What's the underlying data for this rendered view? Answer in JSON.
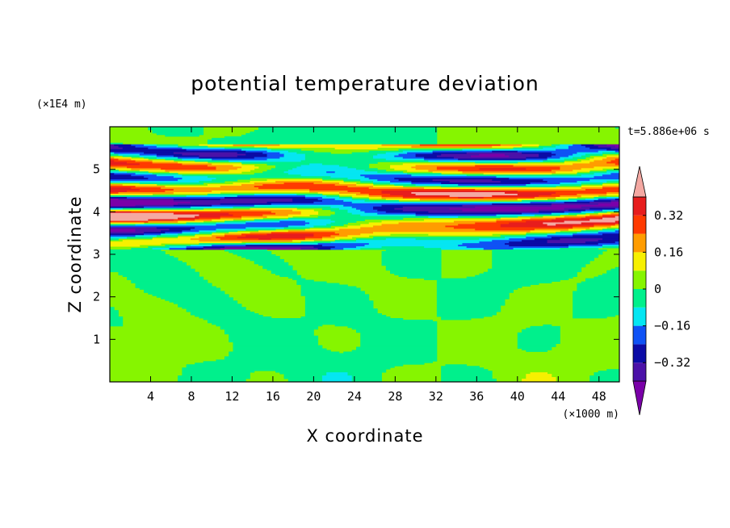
{
  "chart_data": {
    "type": "heatmap",
    "title": "potential temperature deviation",
    "xlabel": "X coordinate",
    "ylabel": "Z coordinate",
    "x_unit": "(×1000 m)",
    "y_unit": "(×1E4 m)",
    "time_label": "t=5.886e+06 s",
    "xlim": [
      0,
      50
    ],
    "ylim": [
      0,
      6
    ],
    "x_ticks": [
      "4",
      "8",
      "12",
      "16",
      "20",
      "24",
      "28",
      "32",
      "36",
      "40",
      "44",
      "48"
    ],
    "y_ticks": [
      "1",
      "2",
      "3",
      "4",
      "5"
    ],
    "colorbar": {
      "tick_labels": [
        "0.32",
        "0.16",
        "0",
        "−0.16",
        "−0.32"
      ],
      "tick_values": [
        0.32,
        0.16,
        0,
        -0.16,
        -0.32
      ],
      "levels": [
        -0.4,
        -0.32,
        -0.24,
        -0.16,
        -0.08,
        0,
        0.08,
        0.16,
        0.24,
        0.32,
        0.4
      ],
      "colors": [
        "#7a00a8",
        "#4b11a8",
        "#0b0ba6",
        "#0f52f5",
        "#05e6f2",
        "#00f08c",
        "#86f500",
        "#f7f000",
        "#ff9c00",
        "#ff3a00",
        "#e71d1d",
        "#f4a8a2"
      ]
    },
    "description_bands": {
      "upper_z_range": [
        3.1,
        5.6
      ],
      "lower_z_range": [
        0,
        3.1
      ]
    }
  }
}
